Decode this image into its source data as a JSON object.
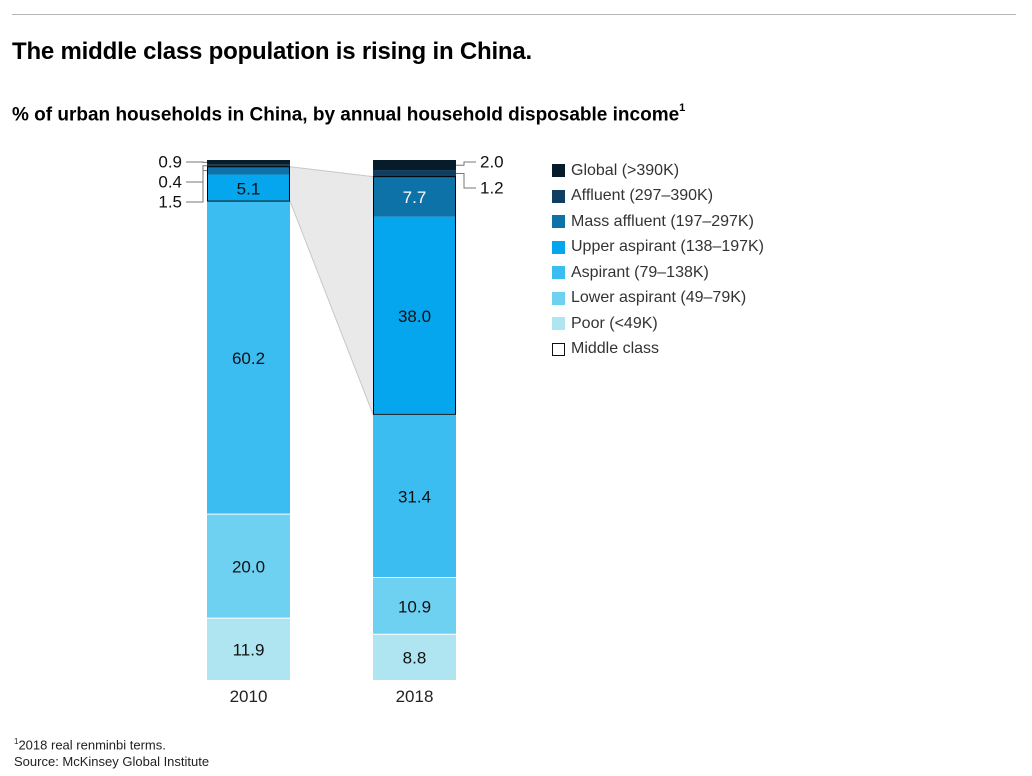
{
  "header": {
    "title": "The middle class population is rising in China.",
    "subtitle": "% of urban households in China, by annual household disposable income",
    "subtitle_note": "1"
  },
  "footnote": {
    "marker": "1",
    "note": "2018 real renminbi terms.",
    "source": "Source: McKinsey Global Institute"
  },
  "chart_data": {
    "type": "bar",
    "stacked": true,
    "categories": [
      "2010",
      "2018"
    ],
    "series": [
      {
        "name": "Poor (<49K)",
        "color": "#aee5f0",
        "values": [
          11.9,
          8.8
        ],
        "labels": [
          "11.9",
          "8.8"
        ]
      },
      {
        "name": "Lower aspirant (49–79K)",
        "color": "#6fd1f2",
        "values": [
          20.0,
          10.9
        ],
        "labels": [
          "20.0",
          "10.9"
        ]
      },
      {
        "name": "Aspirant (79–138K)",
        "color": "#3bbdf2",
        "values": [
          60.2,
          31.4
        ],
        "labels": [
          "60.2",
          "31.4"
        ]
      },
      {
        "name": "Upper aspirant (138–197K)",
        "color": "#06a6ee",
        "values": [
          5.1,
          38.0
        ],
        "labels": [
          "5.1",
          "38.0"
        ]
      },
      {
        "name": "Mass affluent (197–297K)",
        "color": "#0c72a8",
        "values": [
          1.5,
          7.7
        ],
        "labels": [
          "1.5",
          "7.7"
        ]
      },
      {
        "name": "Affluent (297–390K)",
        "color": "#0e3e63",
        "values": [
          0.4,
          1.2
        ],
        "labels": [
          "0.4",
          "1.2"
        ]
      },
      {
        "name": "Global (>390K)",
        "color": "#071c2b",
        "values": [
          0.9,
          2.0
        ],
        "labels": [
          "0.9",
          "2.0"
        ]
      }
    ],
    "legend_extra": [
      {
        "name": "Middle class",
        "style": "outline"
      }
    ],
    "middle_class_series": [
      "Upper aspirant (138–197K)",
      "Mass affluent (197–297K)"
    ],
    "ylim": [
      0,
      100
    ],
    "xlabel": "",
    "ylabel": "",
    "grid": false,
    "legend_position": "right"
  }
}
